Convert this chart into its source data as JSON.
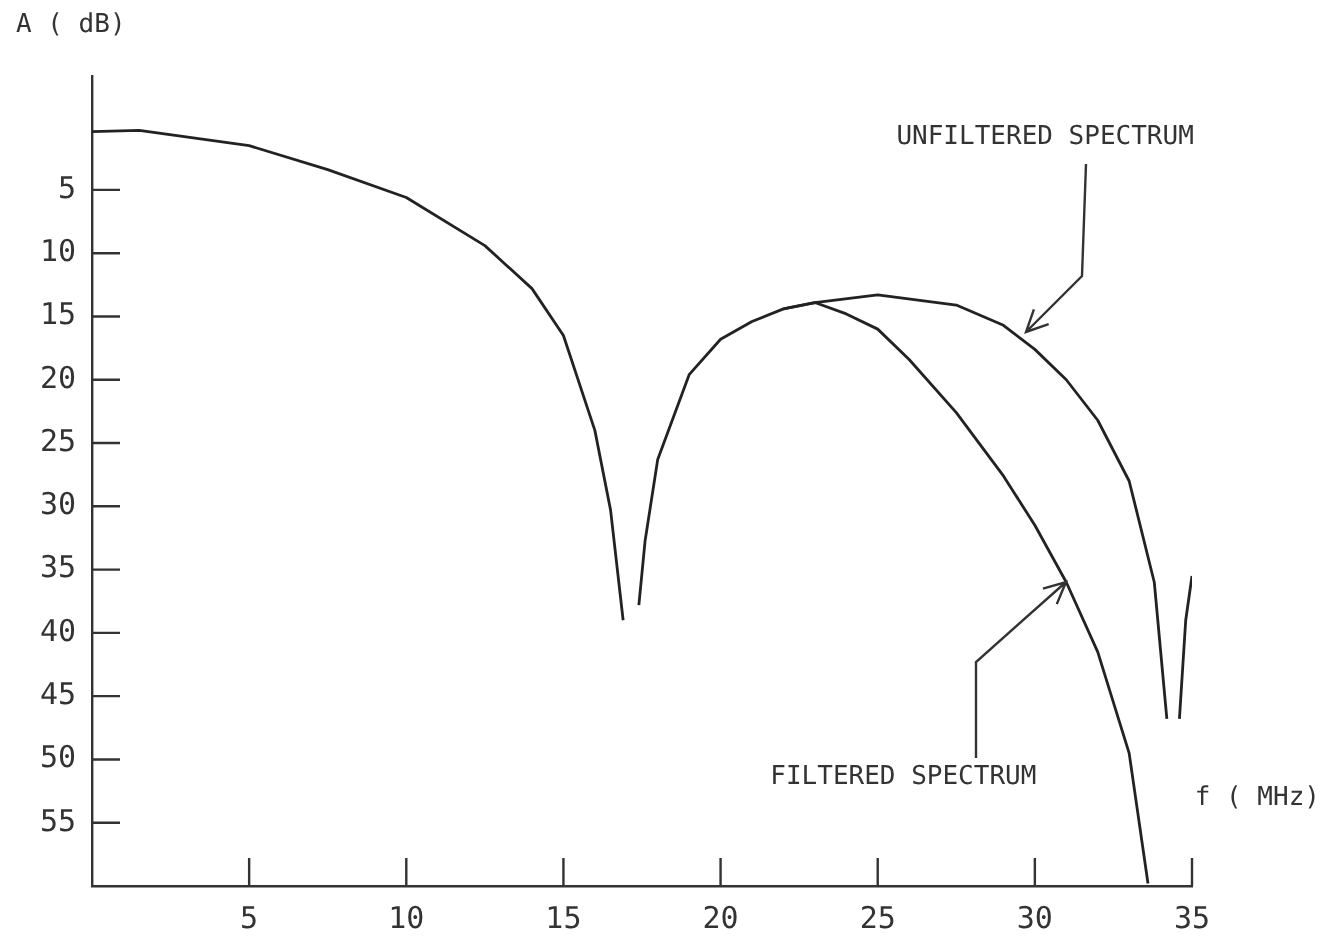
{
  "chart_data": {
    "type": "line",
    "xlabel": "f ( MHz)",
    "ylabel": "A ( dB)",
    "xlim": [
      0,
      35
    ],
    "xticks": [
      5,
      10,
      15,
      20,
      25,
      30,
      35
    ],
    "ylim": [
      60,
      -4
    ],
    "yticks": [
      5,
      10,
      15,
      20,
      25,
      30,
      35,
      40,
      45,
      50,
      55
    ],
    "grid": false,
    "legend": false,
    "marker": "none",
    "line_style": "solid",
    "series": [
      {
        "color": "#222222",
        "x": [
          0,
          1.5,
          5,
          7.5,
          10,
          12.5,
          14,
          15,
          16,
          16.5,
          16.9,
          17.1,
          17.4,
          17.6,
          18,
          19,
          20,
          21,
          22,
          23,
          25,
          27.5,
          29,
          30,
          31,
          32,
          33,
          33.8,
          34.2,
          34.4,
          34.6,
          34.8,
          35
        ],
        "values": [
          0.4,
          0.3,
          1.5,
          3.4,
          5.6,
          9.4,
          12.8,
          16.5,
          24,
          30.3,
          39,
          null,
          37.8,
          32.7,
          26.3,
          19.6,
          16.8,
          15.4,
          14.4,
          13.9,
          13.3,
          14.1,
          15.7,
          17.6,
          20,
          23.2,
          28,
          36,
          46.8,
          null,
          46.8,
          39,
          35.5
        ]
      },
      {
        "color": "#222222",
        "x": [
          22,
          23,
          24,
          25,
          26,
          27.5,
          29,
          30,
          31,
          32,
          33,
          33.6
        ],
        "values": [
          14.4,
          13.9,
          14.8,
          16,
          18.4,
          22.6,
          27.6,
          31.5,
          36,
          41.5,
          49.5,
          59.8
        ]
      }
    ],
    "annotations": [
      {
        "text": "UNFILTERED SPECTRUM",
        "x": 29.7,
        "y": 16.2
      },
      {
        "text": "FILTERED SPECTRUM",
        "x": 31,
        "y": 36
      }
    ]
  }
}
